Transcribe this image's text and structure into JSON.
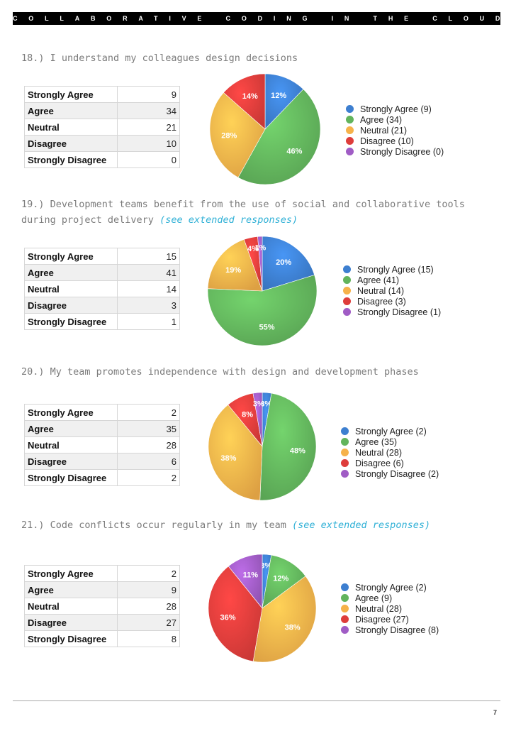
{
  "header": {
    "title": "COLLABORATIVE CODING IN THE CLOUD"
  },
  "colors": {
    "strongly_agree": "#3d7fd0",
    "agree": "#62b45c",
    "neutral": "#f6b24a",
    "disagree": "#de3d3b",
    "strongly_disagree": "#a05cc5"
  },
  "sections": [
    {
      "question": "18.) I understand my colleagues design decisions",
      "link": "",
      "rows": [
        {
          "label": "Strongly Agree",
          "value": "9"
        },
        {
          "label": "Agree",
          "value": "34"
        },
        {
          "label": "Neutral",
          "value": "21"
        },
        {
          "label": "Disagree",
          "value": "10"
        },
        {
          "label": "Strongly Disagree",
          "value": "0"
        }
      ],
      "legend": [
        "Strongly Agree (9)",
        "Agree (34)",
        "Neutral (21)",
        "Disagree (10)",
        "Strongly Disagree (0)"
      ],
      "slice_labels": [
        "12%",
        "46%",
        "28%",
        "14%",
        ""
      ]
    },
    {
      "question": "19.) Development teams benefit from the use of social and collaborative tools during project delivery",
      "link": "(see extended responses)",
      "rows": [
        {
          "label": "Strongly Agree",
          "value": "15"
        },
        {
          "label": "Agree",
          "value": "41"
        },
        {
          "label": "Neutral",
          "value": "14"
        },
        {
          "label": "Disagree",
          "value": "3"
        },
        {
          "label": "Strongly Disagree",
          "value": "1"
        }
      ],
      "legend": [
        "Strongly Agree (15)",
        "Agree (41)",
        "Neutral (14)",
        "Disagree (3)",
        "Strongly Disagree (1)"
      ],
      "slice_labels": [
        "20%",
        "55%",
        "19%",
        "4%",
        "1%"
      ]
    },
    {
      "question": "20.) My team promotes independence with design and development phases",
      "link": "",
      "rows": [
        {
          "label": "Strongly Agree",
          "value": "2"
        },
        {
          "label": "Agree",
          "value": "35"
        },
        {
          "label": "Neutral",
          "value": "28"
        },
        {
          "label": "Disagree",
          "value": "6"
        },
        {
          "label": "Strongly Disagree",
          "value": "2"
        }
      ],
      "legend": [
        "Strongly Agree (2)",
        "Agree (35)",
        "Neutral (28)",
        "Disagree (6)",
        "Strongly Disagree (2)"
      ],
      "slice_labels": [
        "3%",
        "48%",
        "38%",
        "8%",
        "3%"
      ]
    },
    {
      "question": "21.) Code conflicts occur regularly in my team",
      "link": "(see extended responses)",
      "rows": [
        {
          "label": "Strongly Agree",
          "value": "2"
        },
        {
          "label": "Agree",
          "value": "9"
        },
        {
          "label": "Neutral",
          "value": "28"
        },
        {
          "label": "Disagree",
          "value": "27"
        },
        {
          "label": "Strongly Disagree",
          "value": "8"
        }
      ],
      "legend": [
        "Strongly Agree (2)",
        "Agree (9)",
        "Neutral (28)",
        "Disagree (27)",
        "Strongly Disagree (8)"
      ],
      "slice_labels": [
        "3%",
        "12%",
        "38%",
        "36%",
        "11%"
      ]
    }
  ],
  "chart_data": [
    {
      "type": "pie",
      "categories": [
        "Strongly Agree",
        "Agree",
        "Neutral",
        "Disagree",
        "Strongly Disagree"
      ],
      "values": [
        9,
        34,
        21,
        10,
        0
      ]
    },
    {
      "type": "pie",
      "categories": [
        "Strongly Agree",
        "Agree",
        "Neutral",
        "Disagree",
        "Strongly Disagree"
      ],
      "values": [
        15,
        41,
        14,
        3,
        1
      ]
    },
    {
      "type": "pie",
      "categories": [
        "Strongly Agree",
        "Agree",
        "Neutral",
        "Disagree",
        "Strongly Disagree"
      ],
      "values": [
        2,
        35,
        28,
        6,
        2
      ]
    },
    {
      "type": "pie",
      "categories": [
        "Strongly Agree",
        "Agree",
        "Neutral",
        "Disagree",
        "Strongly Disagree"
      ],
      "values": [
        2,
        9,
        28,
        27,
        8
      ]
    }
  ],
  "footer": {
    "page_number": "7"
  }
}
